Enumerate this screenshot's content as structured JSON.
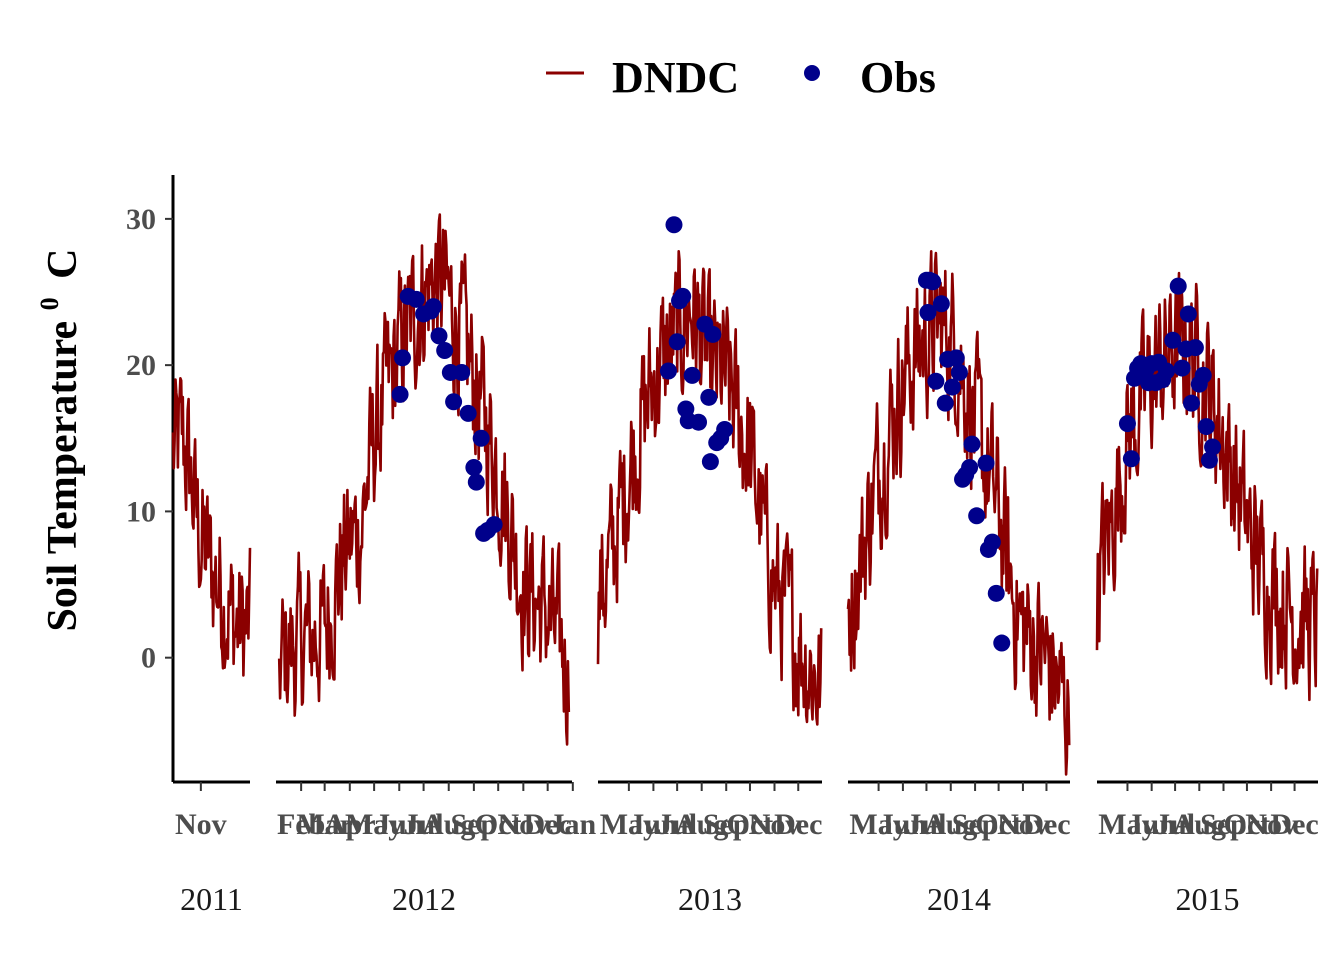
{
  "chart_data": {
    "type": "line",
    "ylabel": "Soil Temperature",
    "ylabel_superscript": "0",
    "ylabel_unit": "C",
    "ylim": [
      -8.5,
      33
    ],
    "yticks": [
      0,
      10,
      20,
      30
    ],
    "legend": {
      "placement": "top",
      "entries": [
        {
          "name": "DNDC",
          "type": "line",
          "color": "#8B0000"
        },
        {
          "name": "Obs",
          "type": "point",
          "color": "#00008B"
        }
      ]
    },
    "facets": [
      {
        "label": "2011",
        "x_range": [
          "2011-09-28",
          "2011-12-31"
        ],
        "x_ticks": [
          {
            "date": "2011-11-01",
            "label": "Nov"
          }
        ],
        "model_anchors": [
          [
            "2011-09-28",
            14
          ],
          [
            "2011-10-10",
            15
          ],
          [
            "2011-10-20",
            12
          ],
          [
            "2011-11-01",
            8
          ],
          [
            "2011-11-15",
            6
          ],
          [
            "2011-12-01",
            4
          ],
          [
            "2011-12-15",
            2
          ],
          [
            "2011-12-31",
            2
          ]
        ],
        "observed": []
      },
      {
        "label": "2012",
        "x_range": [
          "2012-01-01",
          "2012-12-31"
        ],
        "x_ticks": [
          {
            "date": "2012-02-01",
            "label": "Feb"
          },
          {
            "date": "2012-03-01",
            "label": "Mar"
          },
          {
            "date": "2012-04-01",
            "label": "Apr"
          },
          {
            "date": "2012-05-01",
            "label": "May"
          },
          {
            "date": "2012-06-01",
            "label": "Jun"
          },
          {
            "date": "2012-07-01",
            "label": "Jul"
          },
          {
            "date": "2012-08-01",
            "label": "Aug"
          },
          {
            "date": "2012-09-01",
            "label": "Sep"
          },
          {
            "date": "2012-10-01",
            "label": "Oct"
          },
          {
            "date": "2012-11-01",
            "label": "Nov"
          },
          {
            "date": "2012-12-01",
            "label": "Dec"
          },
          {
            "date": "2013-01-01",
            "label": "Jan"
          }
        ],
        "model_anchors": [
          [
            "2012-01-05",
            0
          ],
          [
            "2012-02-01",
            1
          ],
          [
            "2012-03-01",
            2
          ],
          [
            "2012-03-25",
            7
          ],
          [
            "2012-04-15",
            9
          ],
          [
            "2012-05-01",
            15
          ],
          [
            "2012-06-01",
            21
          ],
          [
            "2012-07-01",
            25
          ],
          [
            "2012-07-20",
            26
          ],
          [
            "2012-08-10",
            23
          ],
          [
            "2012-09-01",
            19
          ],
          [
            "2012-10-01",
            13
          ],
          [
            "2012-10-20",
            8
          ],
          [
            "2012-11-01",
            5
          ],
          [
            "2012-12-01",
            3
          ],
          [
            "2012-12-27",
            -1
          ]
        ],
        "observed": [
          [
            "2012-06-02",
            18
          ],
          [
            "2012-06-05",
            20.5
          ],
          [
            "2012-06-12",
            24.7
          ],
          [
            "2012-06-22",
            24.5
          ],
          [
            "2012-07-01",
            23.5
          ],
          [
            "2012-07-10",
            23.7
          ],
          [
            "2012-07-13",
            24
          ],
          [
            "2012-07-20",
            22
          ],
          [
            "2012-07-27",
            21
          ],
          [
            "2012-08-03",
            19.5
          ],
          [
            "2012-08-07",
            17.5
          ],
          [
            "2012-08-17",
            19.5
          ],
          [
            "2012-08-25",
            16.7
          ],
          [
            "2012-09-01",
            13
          ],
          [
            "2012-09-04",
            12
          ],
          [
            "2012-09-10",
            15
          ],
          [
            "2012-09-13",
            8.5
          ],
          [
            "2012-09-18",
            8.7
          ],
          [
            "2012-09-26",
            9.1
          ]
        ]
      },
      {
        "label": "2013",
        "x_range": [
          "2013-03-23",
          "2013-12-31"
        ],
        "x_ticks": [
          {
            "date": "2013-05-01",
            "label": "May"
          },
          {
            "date": "2013-06-01",
            "label": "Jun"
          },
          {
            "date": "2013-07-01",
            "label": "Jul"
          },
          {
            "date": "2013-08-01",
            "label": "Aug"
          },
          {
            "date": "2013-09-01",
            "label": "Sep"
          },
          {
            "date": "2013-10-01",
            "label": "Oct"
          },
          {
            "date": "2013-11-01",
            "label": "Nov"
          },
          {
            "date": "2013-12-01",
            "label": "Dec"
          }
        ],
        "model_anchors": [
          [
            "2013-03-23",
            4
          ],
          [
            "2013-04-10",
            7
          ],
          [
            "2013-05-01",
            13
          ],
          [
            "2013-06-01",
            19
          ],
          [
            "2013-07-01",
            22
          ],
          [
            "2013-07-20",
            24
          ],
          [
            "2013-08-10",
            20
          ],
          [
            "2013-09-01",
            19
          ],
          [
            "2013-10-01",
            14
          ],
          [
            "2013-10-20",
            8
          ],
          [
            "2013-11-01",
            5
          ],
          [
            "2013-12-01",
            1
          ],
          [
            "2013-12-30",
            -2
          ]
        ],
        "observed": [
          [
            "2013-06-20",
            19.6
          ],
          [
            "2013-06-27",
            29.6
          ],
          [
            "2013-07-01",
            21.6
          ],
          [
            "2013-07-04",
            24.4
          ],
          [
            "2013-07-08",
            24.7
          ],
          [
            "2013-07-12",
            17
          ],
          [
            "2013-07-15",
            16.2
          ],
          [
            "2013-07-20",
            19.3
          ],
          [
            "2013-07-28",
            16.1
          ],
          [
            "2013-08-05",
            22.8
          ],
          [
            "2013-08-10",
            17.8
          ],
          [
            "2013-08-12",
            13.4
          ],
          [
            "2013-08-15",
            22.1
          ],
          [
            "2013-08-20",
            14.7
          ],
          [
            "2013-08-25",
            15
          ],
          [
            "2013-08-30",
            15.6
          ]
        ]
      },
      {
        "label": "2014",
        "x_range": [
          "2014-03-23",
          "2014-12-31"
        ],
        "x_ticks": [
          {
            "date": "2014-05-01",
            "label": "May"
          },
          {
            "date": "2014-06-01",
            "label": "Jun"
          },
          {
            "date": "2014-07-01",
            "label": "Jul"
          },
          {
            "date": "2014-08-01",
            "label": "Aug"
          },
          {
            "date": "2014-09-01",
            "label": "Sep"
          },
          {
            "date": "2014-10-01",
            "label": "Oct"
          },
          {
            "date": "2014-11-01",
            "label": "Nov"
          },
          {
            "date": "2014-12-01",
            "label": "Dec"
          }
        ],
        "model_anchors": [
          [
            "2014-03-23",
            3
          ],
          [
            "2014-04-10",
            7
          ],
          [
            "2014-05-01",
            13
          ],
          [
            "2014-06-01",
            19
          ],
          [
            "2014-07-01",
            22
          ],
          [
            "2014-07-20",
            23
          ],
          [
            "2014-08-10",
            21
          ],
          [
            "2014-09-01",
            16
          ],
          [
            "2014-10-01",
            10
          ],
          [
            "2014-10-20",
            4
          ],
          [
            "2014-11-01",
            2
          ],
          [
            "2014-12-01",
            0
          ],
          [
            "2014-12-30",
            -4
          ]
        ],
        "observed": [
          [
            "2014-07-01",
            25.8
          ],
          [
            "2014-07-03",
            23.6
          ],
          [
            "2014-07-05",
            25.8
          ],
          [
            "2014-07-09",
            25.7
          ],
          [
            "2014-07-13",
            18.9
          ],
          [
            "2014-07-20",
            24.2
          ],
          [
            "2014-07-25",
            17.4
          ],
          [
            "2014-07-28",
            20.4
          ],
          [
            "2014-08-03",
            18.5
          ],
          [
            "2014-08-08",
            20.5
          ],
          [
            "2014-08-12",
            19.5
          ],
          [
            "2014-08-16",
            12.2
          ],
          [
            "2014-08-20",
            12.5
          ],
          [
            "2014-08-25",
            13
          ],
          [
            "2014-08-28",
            14.6
          ],
          [
            "2014-09-03",
            9.7
          ],
          [
            "2014-09-15",
            13.3
          ],
          [
            "2014-09-18",
            7.4
          ],
          [
            "2014-09-23",
            7.9
          ],
          [
            "2014-09-28",
            4.4
          ],
          [
            "2014-10-05",
            1
          ]
        ]
      },
      {
        "label": "2015",
        "x_range": [
          "2015-03-23",
          "2015-12-31"
        ],
        "x_ticks": [
          {
            "date": "2015-05-01",
            "label": "May"
          },
          {
            "date": "2015-06-01",
            "label": "Jun"
          },
          {
            "date": "2015-07-01",
            "label": "Jul"
          },
          {
            "date": "2015-08-01",
            "label": "Aug"
          },
          {
            "date": "2015-09-01",
            "label": "Sep"
          },
          {
            "date": "2015-10-01",
            "label": "Oct"
          },
          {
            "date": "2015-11-01",
            "label": "Nov"
          },
          {
            "date": "2015-12-01",
            "label": "Dec"
          }
        ],
        "model_anchors": [
          [
            "2015-03-23",
            5
          ],
          [
            "2015-04-10",
            9
          ],
          [
            "2015-05-01",
            15
          ],
          [
            "2015-06-01",
            19
          ],
          [
            "2015-07-01",
            21
          ],
          [
            "2015-07-20",
            21
          ],
          [
            "2015-08-10",
            19
          ],
          [
            "2015-09-01",
            15
          ],
          [
            "2015-10-01",
            9
          ],
          [
            "2015-10-20",
            6
          ],
          [
            "2015-11-01",
            5
          ],
          [
            "2015-12-01",
            3
          ],
          [
            "2015-12-30",
            2
          ]
        ],
        "observed": [
          [
            "2015-05-01",
            16
          ],
          [
            "2015-05-06",
            13.6
          ],
          [
            "2015-05-10",
            19.1
          ],
          [
            "2015-05-14",
            19.8
          ],
          [
            "2015-05-18",
            20.1
          ],
          [
            "2015-05-20",
            19.6
          ],
          [
            "2015-05-25",
            19.7
          ],
          [
            "2015-05-28",
            18.8
          ],
          [
            "2015-06-01",
            20.1
          ],
          [
            "2015-06-06",
            18.8
          ],
          [
            "2015-06-10",
            20.2
          ],
          [
            "2015-06-15",
            19
          ],
          [
            "2015-06-20",
            19.6
          ],
          [
            "2015-06-28",
            21.7
          ],
          [
            "2015-07-05",
            25.4
          ],
          [
            "2015-07-10",
            19.8
          ],
          [
            "2015-07-15",
            21.1
          ],
          [
            "2015-07-18",
            23.5
          ],
          [
            "2015-07-22",
            17.4
          ],
          [
            "2015-07-27",
            21.2
          ],
          [
            "2015-08-01",
            18.7
          ],
          [
            "2015-08-06",
            19.3
          ],
          [
            "2015-08-10",
            15.8
          ],
          [
            "2015-08-14",
            13.5
          ],
          [
            "2015-08-18",
            14.4
          ]
        ]
      }
    ]
  }
}
